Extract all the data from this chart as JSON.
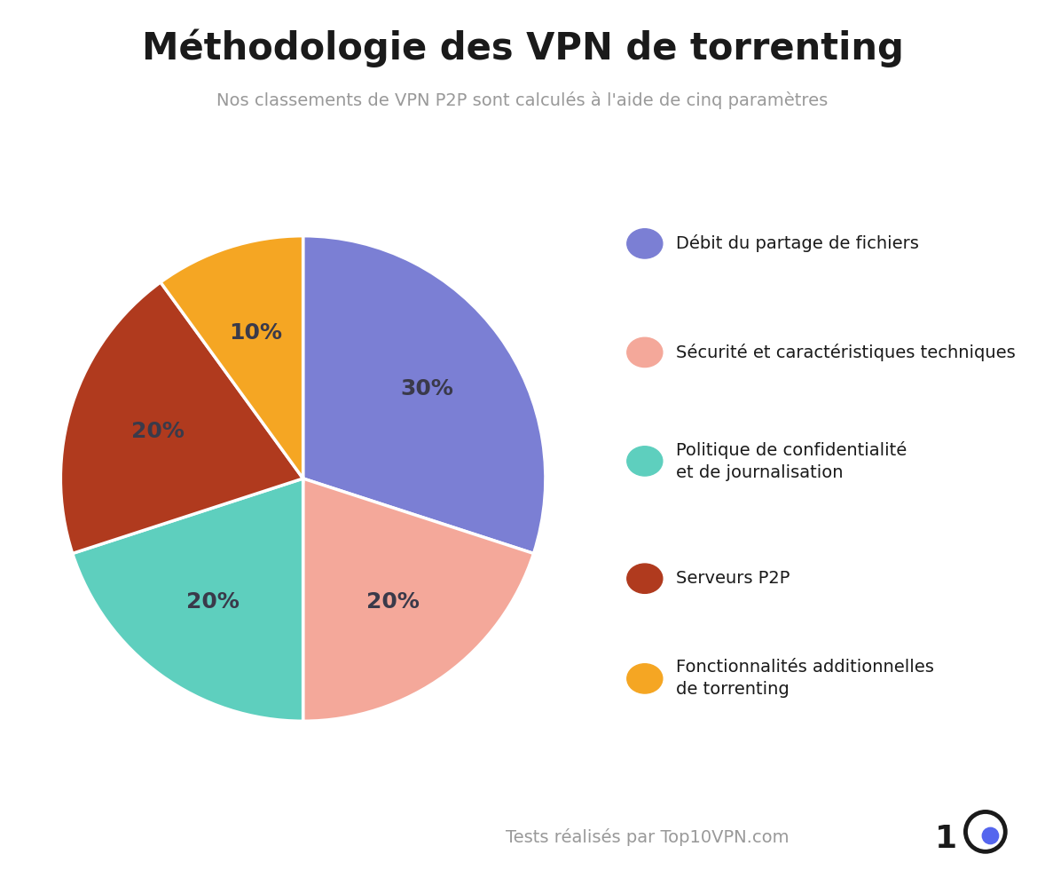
{
  "title": "Méthodologie des VPN de torrenting",
  "subtitle": "Nos classements de VPN P2P sont calculés à l'aide de cinq paramètres",
  "slices": [
    30,
    20,
    20,
    20,
    10
  ],
  "labels": [
    "30%",
    "20%",
    "20%",
    "20%",
    "10%"
  ],
  "colors": [
    "#7B7FD4",
    "#F4A89A",
    "#5ECFBE",
    "#B03A1E",
    "#F5A623"
  ],
  "legend_labels": [
    "Débit du partage de fichiers",
    "Sécurité et caractéristiques techniques",
    "Politique de confidentialité\net de journalisation",
    "Serveurs P2P",
    "Fonctionnalités additionnelles\nde torrenting"
  ],
  "startangle": 90,
  "title_fontsize": 30,
  "subtitle_fontsize": 14,
  "label_fontsize": 18,
  "background_color": "#ffffff",
  "text_color": "#1a1a1a",
  "label_color": "#3a3a4a",
  "subtitle_color": "#999999",
  "footer_text": "Tests réalisés par Top10VPN.com",
  "footer_color": "#999999",
  "footer_fontsize": 14,
  "legend_fontsize": 14
}
